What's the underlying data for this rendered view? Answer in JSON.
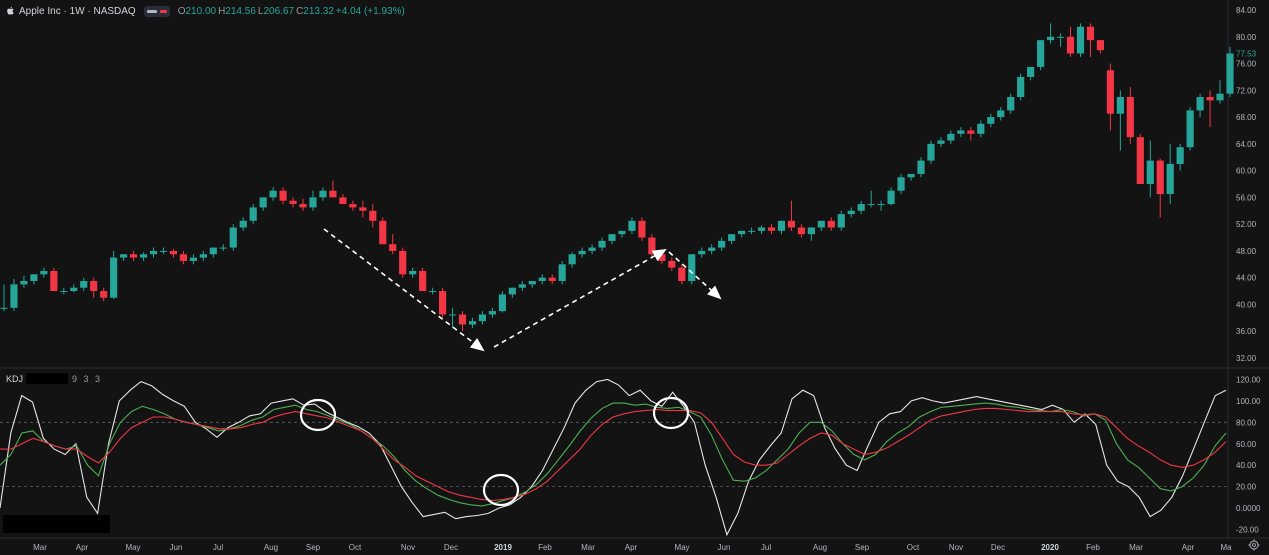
{
  "header": {
    "title": "Apple Inc · 1W · NASDAQ",
    "open_label": "O",
    "open": "210.00",
    "high_label": "H",
    "high": "214.56",
    "low_label": "L",
    "low": "206.67",
    "close_label": "C",
    "close": "213.32",
    "change": "+4.04 (+1.93%)"
  },
  "kdj": {
    "label": "KDJ",
    "params": "9 3 3"
  },
  "colors": {
    "up": "#26a69a",
    "down": "#f23645",
    "k": "#e6e6e6",
    "d": "#4caf50",
    "j": "#f23645",
    "bg": "#131313"
  },
  "chart_data": [
    {
      "type": "candlestick",
      "title": "Apple Inc · 1W · NASDAQ",
      "ylim": [
        30.5,
        85.5
      ],
      "y_ticks": [
        "32.00",
        "36.00",
        "40.00",
        "44.00",
        "48.00",
        "52.00",
        "56.00",
        "60.00",
        "64.00",
        "68.00",
        "72.00",
        "76.00",
        "80.00",
        "84.00"
      ],
      "x_ticks": [
        "Mar",
        "Apr",
        "May",
        "Jun",
        "Jul",
        "Aug",
        "Sep",
        "Oct",
        "Nov",
        "Dec",
        "2019",
        "Feb",
        "Mar",
        "Apr",
        "May",
        "Jun",
        "Jul",
        "Aug",
        "Sep",
        "Oct",
        "Nov",
        "Dec",
        "2020",
        "Feb",
        "Mar",
        "Apr",
        "Ma"
      ],
      "last_price_label": "77.53",
      "candles": [
        [
          39.5,
          43.0,
          39.0,
          39.5
        ],
        [
          39.5,
          43.8,
          39.0,
          43.0
        ],
        [
          43.0,
          44.3,
          42.5,
          43.5
        ],
        [
          43.5,
          44.5,
          43.0,
          44.5
        ],
        [
          44.5,
          45.5,
          44.0,
          45.0
        ],
        [
          45.0,
          45.5,
          42.0,
          42.0
        ],
        [
          42.0,
          42.5,
          41.5,
          42.0
        ],
        [
          42.0,
          43.0,
          41.8,
          42.5
        ],
        [
          42.5,
          44.0,
          42.0,
          43.5
        ],
        [
          43.5,
          44.0,
          41.0,
          42.0
        ],
        [
          42.0,
          42.5,
          40.5,
          41.0
        ],
        [
          41.0,
          48.0,
          40.8,
          47.0
        ],
        [
          47.0,
          47.5,
          46.5,
          47.5
        ],
        [
          47.5,
          48.0,
          46.5,
          47.0
        ],
        [
          47.0,
          47.8,
          46.5,
          47.5
        ],
        [
          47.5,
          48.5,
          47.0,
          48.0
        ],
        [
          48.0,
          48.5,
          47.5,
          48.0
        ],
        [
          48.0,
          48.3,
          47.0,
          47.5
        ],
        [
          47.5,
          48.0,
          46.0,
          46.5
        ],
        [
          46.5,
          47.5,
          46.0,
          47.0
        ],
        [
          47.0,
          48.0,
          46.5,
          47.5
        ],
        [
          47.5,
          48.5,
          47.0,
          48.5
        ],
        [
          48.5,
          49.0,
          48.0,
          48.5
        ],
        [
          48.5,
          52.0,
          48.0,
          51.5
        ],
        [
          51.5,
          53.0,
          51.0,
          52.5
        ],
        [
          52.5,
          55.0,
          52.0,
          54.5
        ],
        [
          54.5,
          56.0,
          54.0,
          56.0
        ],
        [
          56.0,
          57.5,
          55.5,
          57.0
        ],
        [
          57.0,
          57.5,
          55.0,
          55.5
        ],
        [
          55.5,
          56.0,
          54.5,
          55.0
        ],
        [
          55.0,
          55.8,
          54.0,
          54.5
        ],
        [
          54.5,
          57.0,
          54.0,
          56.0
        ],
        [
          56.0,
          57.5,
          55.5,
          57.0
        ],
        [
          57.0,
          58.5,
          56.0,
          56.0
        ],
        [
          56.0,
          56.5,
          55.0,
          55.0
        ],
        [
          55.0,
          55.5,
          54.0,
          54.5
        ],
        [
          54.5,
          55.5,
          53.0,
          54.0
        ],
        [
          54.0,
          55.0,
          51.5,
          52.5
        ],
        [
          52.5,
          53.0,
          49.0,
          49.0
        ],
        [
          49.0,
          50.5,
          47.5,
          48.0
        ],
        [
          48.0,
          48.5,
          44.0,
          44.5
        ],
        [
          44.5,
          45.5,
          44.0,
          45.0
        ],
        [
          45.0,
          45.5,
          42.0,
          42.0
        ],
        [
          42.0,
          42.5,
          41.5,
          42.0
        ],
        [
          42.0,
          42.5,
          38.0,
          38.5
        ],
        [
          38.5,
          39.5,
          36.5,
          38.5
        ],
        [
          38.5,
          39.0,
          36.0,
          37.0
        ],
        [
          37.0,
          38.0,
          36.5,
          37.5
        ],
        [
          37.5,
          39.0,
          37.0,
          38.5
        ],
        [
          38.5,
          39.5,
          38.0,
          39.0
        ],
        [
          39.0,
          42.0,
          38.8,
          41.5
        ],
        [
          41.5,
          42.5,
          41.0,
          42.5
        ],
        [
          42.5,
          43.5,
          42.0,
          43.0
        ],
        [
          43.0,
          43.5,
          42.5,
          43.5
        ],
        [
          43.5,
          44.5,
          43.0,
          44.0
        ],
        [
          44.0,
          44.5,
          43.0,
          43.5
        ],
        [
          43.5,
          46.5,
          43.0,
          46.0
        ],
        [
          46.0,
          47.8,
          45.5,
          47.5
        ],
        [
          47.5,
          48.5,
          47.0,
          48.0
        ],
        [
          48.0,
          49.0,
          47.5,
          48.5
        ],
        [
          48.5,
          50.0,
          48.0,
          49.5
        ],
        [
          49.5,
          50.5,
          49.0,
          50.5
        ],
        [
          50.5,
          51.0,
          50.0,
          51.0
        ],
        [
          51.0,
          53.0,
          50.5,
          52.5
        ],
        [
          52.5,
          53.0,
          49.5,
          50.0
        ],
        [
          50.0,
          50.5,
          47.0,
          47.5
        ],
        [
          47.5,
          48.0,
          46.0,
          46.5
        ],
        [
          46.5,
          47.0,
          45.0,
          45.5
        ],
        [
          45.5,
          46.0,
          43.0,
          43.5
        ],
        [
          43.5,
          47.5,
          43.0,
          47.5
        ],
        [
          47.5,
          48.5,
          47.0,
          48.0
        ],
        [
          48.0,
          49.0,
          47.5,
          48.5
        ],
        [
          48.5,
          50.0,
          48.0,
          49.5
        ],
        [
          49.5,
          50.5,
          49.0,
          50.5
        ],
        [
          50.5,
          51.0,
          50.0,
          51.0
        ],
        [
          51.0,
          51.5,
          50.5,
          51.0
        ],
        [
          51.0,
          51.8,
          50.5,
          51.5
        ],
        [
          51.5,
          52.0,
          50.5,
          51.0
        ],
        [
          51.0,
          52.5,
          50.5,
          52.5
        ],
        [
          52.5,
          55.5,
          51.0,
          51.5
        ],
        [
          51.5,
          52.0,
          50.0,
          50.5
        ],
        [
          50.5,
          51.5,
          49.5,
          51.5
        ],
        [
          51.5,
          52.5,
          51.0,
          52.5
        ],
        [
          52.5,
          53.0,
          51.0,
          51.5
        ],
        [
          51.5,
          54.0,
          51.0,
          53.5
        ],
        [
          53.5,
          54.5,
          53.0,
          54.0
        ],
        [
          54.0,
          55.5,
          53.5,
          55.0
        ],
        [
          55.0,
          57.0,
          54.5,
          55.0
        ],
        [
          55.0,
          55.5,
          54.0,
          55.0
        ],
        [
          55.0,
          57.5,
          54.8,
          57.0
        ],
        [
          57.0,
          59.5,
          56.5,
          59.0
        ],
        [
          59.0,
          59.5,
          58.5,
          59.5
        ],
        [
          59.5,
          62.0,
          59.0,
          61.5
        ],
        [
          61.5,
          64.5,
          61.0,
          64.0
        ],
        [
          64.0,
          65.0,
          63.5,
          64.5
        ],
        [
          64.5,
          66.0,
          64.0,
          65.5
        ],
        [
          65.5,
          66.5,
          65.0,
          66.0
        ],
        [
          66.0,
          66.5,
          64.5,
          65.5
        ],
        [
          65.5,
          67.5,
          65.0,
          67.0
        ],
        [
          67.0,
          68.5,
          66.5,
          68.0
        ],
        [
          68.0,
          69.5,
          67.5,
          69.0
        ],
        [
          69.0,
          71.5,
          68.5,
          71.0
        ],
        [
          71.0,
          74.5,
          70.5,
          74.0
        ],
        [
          74.0,
          75.5,
          73.5,
          75.5
        ],
        [
          75.5,
          79.5,
          75.0,
          79.5
        ],
        [
          79.5,
          82.0,
          79.0,
          80.0
        ],
        [
          80.0,
          80.5,
          78.5,
          80.0
        ],
        [
          80.0,
          81.5,
          77.0,
          77.5
        ],
        [
          77.5,
          82.0,
          77.0,
          81.5
        ],
        [
          81.5,
          82.0,
          77.0,
          79.5
        ],
        [
          79.5,
          79.5,
          77.5,
          78.0
        ],
        [
          75.0,
          76.0,
          66.0,
          68.5
        ],
        [
          68.5,
          72.0,
          63.0,
          71.0
        ],
        [
          71.0,
          72.5,
          64.0,
          65.0
        ],
        [
          65.0,
          65.5,
          58.0,
          58.0
        ],
        [
          58.0,
          64.5,
          56.0,
          61.5
        ],
        [
          61.5,
          61.8,
          53.0,
          56.5
        ],
        [
          56.5,
          64.0,
          55.0,
          61.0
        ],
        [
          61.0,
          64.0,
          60.0,
          63.5
        ],
        [
          63.5,
          69.5,
          63.0,
          69.0
        ],
        [
          69.0,
          71.5,
          68.0,
          71.0
        ],
        [
          71.0,
          72.0,
          66.5,
          70.5
        ],
        [
          70.5,
          73.5,
          70.0,
          71.5
        ],
        [
          71.5,
          78.5,
          71.0,
          77.5
        ]
      ],
      "annotations": [
        {
          "type": "arrow",
          "from": [
            10,
            56.5
          ],
          "to": [
            16,
            41
          ],
          "style": "dashed"
        },
        {
          "type": "arrow",
          "from": [
            16,
            41
          ],
          "to": [
            22,
            51
          ],
          "style": "dashed"
        },
        {
          "type": "arrow",
          "from": [
            22,
            51
          ],
          "to": [
            24,
            46
          ],
          "style": "dashed"
        }
      ]
    },
    {
      "type": "line",
      "title": "KDJ 9 3 3",
      "ylim": [
        -28,
        127
      ],
      "y_ticks": [
        "-20.00",
        "0.0000",
        "20.00",
        "40.00",
        "60.00",
        "80.00",
        "100.00",
        "120.00"
      ],
      "reference_lines": [
        20,
        80
      ],
      "series": [
        {
          "name": "K",
          "values": [
            0,
            70,
            105,
            99,
            65,
            55,
            50,
            60,
            10,
            -5,
            60,
            100,
            110,
            118,
            114,
            106,
            100,
            95,
            80,
            74,
            66,
            75,
            80,
            86,
            88,
            98,
            100,
            102,
            96,
            97,
            90,
            85,
            80,
            76,
            70,
            60,
            40,
            20,
            5,
            -8,
            -6,
            -4,
            -10,
            -8,
            -7,
            -5,
            0,
            3,
            10,
            20,
            35,
            55,
            75,
            98,
            110,
            118,
            120,
            115,
            105,
            110,
            100,
            95,
            108,
            95,
            80,
            40,
            10,
            -25,
            -5,
            25,
            45,
            58,
            70,
            102,
            110,
            105,
            75,
            55,
            40,
            35,
            58,
            80,
            88,
            90,
            100,
            103,
            100,
            98,
            100,
            102,
            104,
            102,
            100,
            98,
            96,
            94,
            92,
            96,
            92,
            80,
            88,
            78,
            40,
            25,
            20,
            10,
            -8,
            -2,
            10,
            30,
            55,
            80,
            105,
            110
          ]
        },
        {
          "name": "D",
          "values": [
            40,
            50,
            70,
            72,
            62,
            58,
            55,
            58,
            40,
            30,
            60,
            80,
            90,
            95,
            92,
            88,
            83,
            80,
            78,
            75,
            72,
            74,
            77,
            82,
            85,
            92,
            94,
            96,
            92,
            90,
            86,
            82,
            78,
            72,
            65,
            58,
            48,
            35,
            25,
            18,
            12,
            8,
            5,
            3,
            2,
            4,
            7,
            10,
            15,
            22,
            32,
            45,
            58,
            72,
            84,
            93,
            98,
            98,
            96,
            97,
            94,
            93,
            94,
            90,
            85,
            68,
            45,
            26,
            25,
            28,
            35,
            45,
            55,
            70,
            80,
            80,
            72,
            60,
            50,
            45,
            50,
            62,
            70,
            76,
            85,
            90,
            94,
            95,
            96,
            97,
            98,
            97,
            95,
            94,
            92,
            91,
            90,
            92,
            90,
            86,
            88,
            82,
            60,
            45,
            38,
            28,
            18,
            16,
            20,
            28,
            40,
            58,
            70
          ]
        },
        {
          "name": "J",
          "values": [
            55,
            55,
            60,
            65,
            62,
            58,
            55,
            55,
            48,
            42,
            52,
            65,
            75,
            80,
            85,
            85,
            83,
            80,
            78,
            76,
            74,
            74,
            75,
            78,
            80,
            85,
            88,
            90,
            88,
            86,
            84,
            80,
            76,
            72,
            65,
            55,
            45,
            38,
            30,
            25,
            20,
            15,
            12,
            10,
            8,
            7,
            8,
            10,
            13,
            18,
            25,
            35,
            45,
            55,
            68,
            78,
            85,
            88,
            90,
            91,
            92,
            91,
            91,
            91,
            89,
            80,
            65,
            50,
            43,
            40,
            40,
            42,
            50,
            58,
            65,
            70,
            68,
            60,
            55,
            50,
            52,
            56,
            62,
            68,
            75,
            82,
            86,
            88,
            90,
            92,
            93,
            93,
            92,
            91,
            90,
            90,
            90,
            90,
            88,
            87,
            88,
            85,
            75,
            65,
            58,
            52,
            45,
            40,
            38,
            40,
            45,
            52,
            62
          ]
        }
      ],
      "annotations": [
        {
          "type": "circle",
          "at": [
            9,
            86
          ]
        },
        {
          "type": "circle",
          "at": [
            16,
            10
          ]
        },
        {
          "type": "circle",
          "at": [
            23,
            92
          ]
        }
      ]
    }
  ]
}
